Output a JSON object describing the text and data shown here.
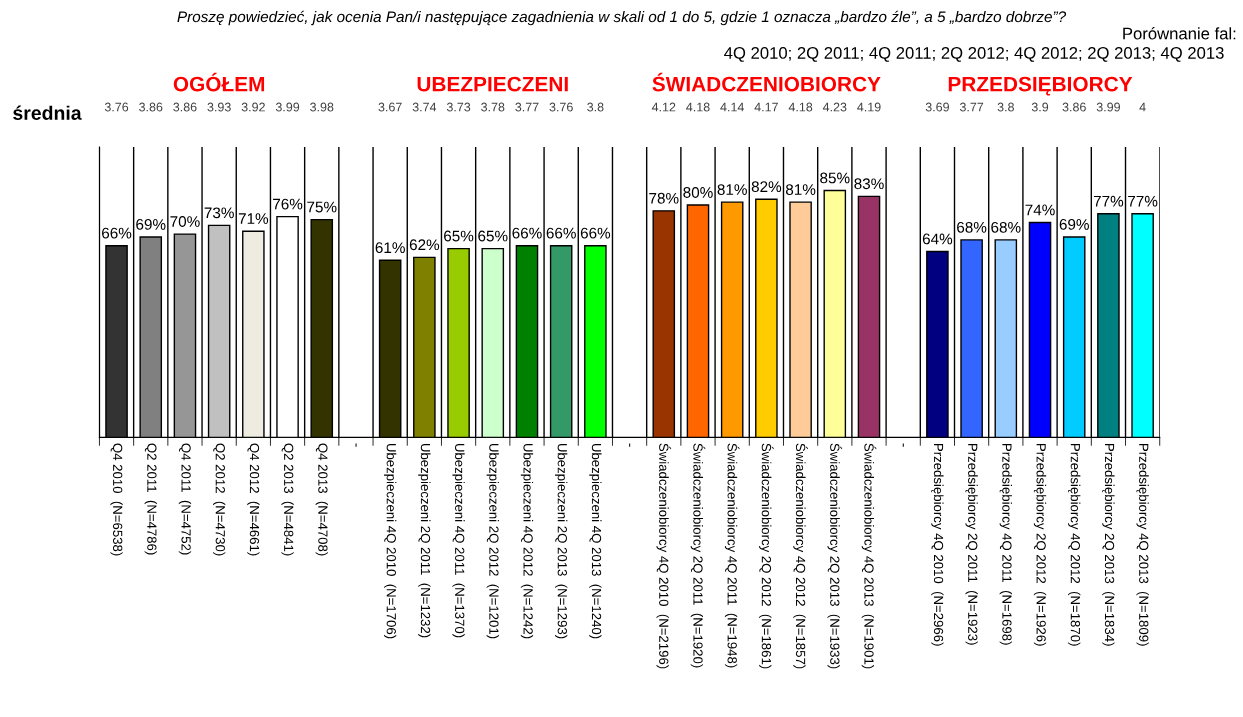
{
  "chart_data": {
    "type": "bar",
    "title": "Proszę powiedzieć, jak ocenia Pan/i następujące zagadnienia w skali od 1 do 5, gdzie 1 oznacza „bardzo źle”, a 5 „bardzo dobrze”?",
    "categories": [
      "Q4 2010  (N=6538)",
      "Q2 2011  (N=4786)",
      "Q4 2011  (N=4752)",
      "Q2 2012  (N=4730)",
      "Q4 2012  (N=4661)",
      "Q2 2013  (N=4841)",
      "Q4 2013  (N=4708)",
      "-",
      "Ubezpieczeni 4Q 2010  (N=1706)",
      "Ubezpieczeni 2Q 2011  (N=1232)",
      "Ubezpieczeni 4Q 2011  (N=1370)",
      "Ubezpieczeni 2Q 2012  (N=1201)",
      "Ubezpieczeni 4Q 2012  (N=1242)",
      "Ubezpieczeni 2Q 2013  (N=1293)",
      "Ubezpieczeni 4Q 2013  (N=1240)",
      "-",
      "Świadczeniobiorcy 4Q 2010  (N=2196)",
      "Świadczeniobiorcy 2Q 2011  (N=1920)",
      "Świadczeniobiorcy 4Q 2011  (N=1948)",
      "Świadczeniobiorcy 2Q 2012  (N=1861)",
      "Świadczeniobiorcy 4Q 2012  (N=1857)",
      "Świadczeniobiorcy 2Q 2013  (N=1933)",
      "Świadczeniobiorcy 4Q 2013  (N=1901)",
      "-",
      "Przedsiębiorcy 4Q 2010  (N=2966)",
      "Przedsiębiorcy 2Q 2011  (N=1923)",
      "Przedsiębiorcy 4Q 2011  (N=1698)",
      "Przedsiębiorcy 2Q 2012  (N=1926)",
      "Przedsiębiorcy 4Q 2012  (N=1870)",
      "Przedsiębiorcy 2Q 2013  (N=1834)",
      "Przedsiębiorcy 4Q 2013  (N=1809)"
    ],
    "values": [
      66,
      69,
      70,
      73,
      71,
      76,
      75,
      null,
      61,
      62,
      65,
      65,
      66,
      66,
      66,
      null,
      78,
      80,
      81,
      82,
      81,
      85,
      83,
      null,
      64,
      68,
      68,
      74,
      69,
      77,
      77
    ],
    "colors": [
      "#333333",
      "#808080",
      "#969696",
      "#c0c0c0",
      "#eeece1",
      "#ffffff",
      "#333300",
      null,
      "#333300",
      "#808000",
      "#99cc00",
      "#ccffcc",
      "#008000",
      "#339966",
      "#00ff00",
      null,
      "#993300",
      "#ff6600",
      "#ff9900",
      "#ffcc00",
      "#ffcc99",
      "#ffff99",
      "#993366",
      null,
      "#000080",
      "#3366ff",
      "#99ccff",
      "#0000ff",
      "#00ccff",
      "#008080",
      "#00ffff"
    ],
    "value_labels": [
      "66%",
      "69%",
      "70%",
      "73%",
      "71%",
      "76%",
      "75%",
      null,
      "61%",
      "62%",
      "65%",
      "65%",
      "66%",
      "66%",
      "66%",
      null,
      "78%",
      "80%",
      "81%",
      "82%",
      "81%",
      "85%",
      "83%",
      null,
      "64%",
      "68%",
      "68%",
      "74%",
      "69%",
      "77%",
      "77%"
    ],
    "ylim": [
      0,
      100
    ],
    "tick_labels": "x",
    "grid": "x",
    "annotations": [
      "Porównanie fal:",
      "4Q 2010; 2Q 2011; 4Q 2011; 2Q 2012; 4Q 2012; 2Q 2013; 4Q 2013",
      "średnia",
      "OGÓŁEM",
      "UBEZPIECZENI",
      "ŚWIADCZENIOBIORCY",
      "PRZEDSIĘBIORCY",
      "3.76",
      "3.86",
      "3.86",
      "3.93",
      "3.92",
      "3.99",
      "3.98",
      "3.67",
      "3.74",
      "3.73",
      "3.78",
      "3.77",
      "3.76",
      "3.8",
      "4.12",
      "4.18",
      "4.14",
      "4.17",
      "4.18",
      "4.23",
      "4.19",
      "3.69",
      "3.77",
      "3.8",
      "3.9",
      "3.86",
      "3.99",
      "4"
    ]
  }
}
